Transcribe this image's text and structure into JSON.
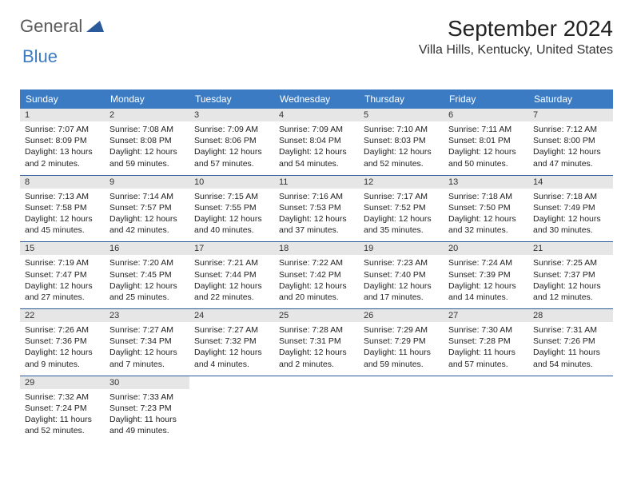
{
  "logo": {
    "part1": "General",
    "part2": "Blue",
    "icon_color": "#2a5a9a"
  },
  "header": {
    "month_title": "September 2024",
    "location": "Villa Hills, Kentucky, United States"
  },
  "colors": {
    "header_bar": "#3b7bc4",
    "daynum_band": "#e6e6e6",
    "week_border": "#2a5a9a"
  },
  "day_headers": [
    "Sunday",
    "Monday",
    "Tuesday",
    "Wednesday",
    "Thursday",
    "Friday",
    "Saturday"
  ],
  "weeks": [
    [
      {
        "n": "1",
        "sunrise": "Sunrise: 7:07 AM",
        "sunset": "Sunset: 8:09 PM",
        "daylight": "Daylight: 13 hours and 2 minutes."
      },
      {
        "n": "2",
        "sunrise": "Sunrise: 7:08 AM",
        "sunset": "Sunset: 8:08 PM",
        "daylight": "Daylight: 12 hours and 59 minutes."
      },
      {
        "n": "3",
        "sunrise": "Sunrise: 7:09 AM",
        "sunset": "Sunset: 8:06 PM",
        "daylight": "Daylight: 12 hours and 57 minutes."
      },
      {
        "n": "4",
        "sunrise": "Sunrise: 7:09 AM",
        "sunset": "Sunset: 8:04 PM",
        "daylight": "Daylight: 12 hours and 54 minutes."
      },
      {
        "n": "5",
        "sunrise": "Sunrise: 7:10 AM",
        "sunset": "Sunset: 8:03 PM",
        "daylight": "Daylight: 12 hours and 52 minutes."
      },
      {
        "n": "6",
        "sunrise": "Sunrise: 7:11 AM",
        "sunset": "Sunset: 8:01 PM",
        "daylight": "Daylight: 12 hours and 50 minutes."
      },
      {
        "n": "7",
        "sunrise": "Sunrise: 7:12 AM",
        "sunset": "Sunset: 8:00 PM",
        "daylight": "Daylight: 12 hours and 47 minutes."
      }
    ],
    [
      {
        "n": "8",
        "sunrise": "Sunrise: 7:13 AM",
        "sunset": "Sunset: 7:58 PM",
        "daylight": "Daylight: 12 hours and 45 minutes."
      },
      {
        "n": "9",
        "sunrise": "Sunrise: 7:14 AM",
        "sunset": "Sunset: 7:57 PM",
        "daylight": "Daylight: 12 hours and 42 minutes."
      },
      {
        "n": "10",
        "sunrise": "Sunrise: 7:15 AM",
        "sunset": "Sunset: 7:55 PM",
        "daylight": "Daylight: 12 hours and 40 minutes."
      },
      {
        "n": "11",
        "sunrise": "Sunrise: 7:16 AM",
        "sunset": "Sunset: 7:53 PM",
        "daylight": "Daylight: 12 hours and 37 minutes."
      },
      {
        "n": "12",
        "sunrise": "Sunrise: 7:17 AM",
        "sunset": "Sunset: 7:52 PM",
        "daylight": "Daylight: 12 hours and 35 minutes."
      },
      {
        "n": "13",
        "sunrise": "Sunrise: 7:18 AM",
        "sunset": "Sunset: 7:50 PM",
        "daylight": "Daylight: 12 hours and 32 minutes."
      },
      {
        "n": "14",
        "sunrise": "Sunrise: 7:18 AM",
        "sunset": "Sunset: 7:49 PM",
        "daylight": "Daylight: 12 hours and 30 minutes."
      }
    ],
    [
      {
        "n": "15",
        "sunrise": "Sunrise: 7:19 AM",
        "sunset": "Sunset: 7:47 PM",
        "daylight": "Daylight: 12 hours and 27 minutes."
      },
      {
        "n": "16",
        "sunrise": "Sunrise: 7:20 AM",
        "sunset": "Sunset: 7:45 PM",
        "daylight": "Daylight: 12 hours and 25 minutes."
      },
      {
        "n": "17",
        "sunrise": "Sunrise: 7:21 AM",
        "sunset": "Sunset: 7:44 PM",
        "daylight": "Daylight: 12 hours and 22 minutes."
      },
      {
        "n": "18",
        "sunrise": "Sunrise: 7:22 AM",
        "sunset": "Sunset: 7:42 PM",
        "daylight": "Daylight: 12 hours and 20 minutes."
      },
      {
        "n": "19",
        "sunrise": "Sunrise: 7:23 AM",
        "sunset": "Sunset: 7:40 PM",
        "daylight": "Daylight: 12 hours and 17 minutes."
      },
      {
        "n": "20",
        "sunrise": "Sunrise: 7:24 AM",
        "sunset": "Sunset: 7:39 PM",
        "daylight": "Daylight: 12 hours and 14 minutes."
      },
      {
        "n": "21",
        "sunrise": "Sunrise: 7:25 AM",
        "sunset": "Sunset: 7:37 PM",
        "daylight": "Daylight: 12 hours and 12 minutes."
      }
    ],
    [
      {
        "n": "22",
        "sunrise": "Sunrise: 7:26 AM",
        "sunset": "Sunset: 7:36 PM",
        "daylight": "Daylight: 12 hours and 9 minutes."
      },
      {
        "n": "23",
        "sunrise": "Sunrise: 7:27 AM",
        "sunset": "Sunset: 7:34 PM",
        "daylight": "Daylight: 12 hours and 7 minutes."
      },
      {
        "n": "24",
        "sunrise": "Sunrise: 7:27 AM",
        "sunset": "Sunset: 7:32 PM",
        "daylight": "Daylight: 12 hours and 4 minutes."
      },
      {
        "n": "25",
        "sunrise": "Sunrise: 7:28 AM",
        "sunset": "Sunset: 7:31 PM",
        "daylight": "Daylight: 12 hours and 2 minutes."
      },
      {
        "n": "26",
        "sunrise": "Sunrise: 7:29 AM",
        "sunset": "Sunset: 7:29 PM",
        "daylight": "Daylight: 11 hours and 59 minutes."
      },
      {
        "n": "27",
        "sunrise": "Sunrise: 7:30 AM",
        "sunset": "Sunset: 7:28 PM",
        "daylight": "Daylight: 11 hours and 57 minutes."
      },
      {
        "n": "28",
        "sunrise": "Sunrise: 7:31 AM",
        "sunset": "Sunset: 7:26 PM",
        "daylight": "Daylight: 11 hours and 54 minutes."
      }
    ],
    [
      {
        "n": "29",
        "sunrise": "Sunrise: 7:32 AM",
        "sunset": "Sunset: 7:24 PM",
        "daylight": "Daylight: 11 hours and 52 minutes."
      },
      {
        "n": "30",
        "sunrise": "Sunrise: 7:33 AM",
        "sunset": "Sunset: 7:23 PM",
        "daylight": "Daylight: 11 hours and 49 minutes."
      },
      null,
      null,
      null,
      null,
      null
    ]
  ]
}
